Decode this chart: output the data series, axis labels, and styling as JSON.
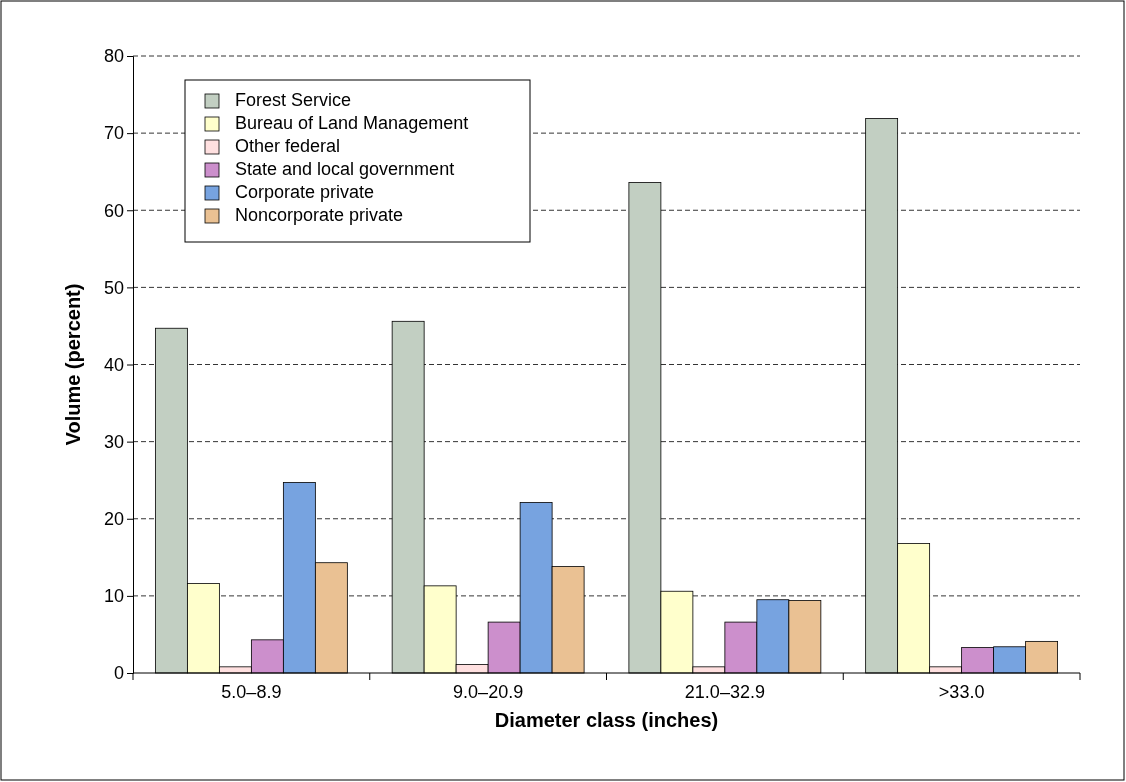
{
  "chart_data": {
    "type": "bar",
    "xlabel": "Diameter class (inches)",
    "ylabel": "Volume (percent)",
    "categories": [
      "5.0–8.9",
      "9.0–20.9",
      "21.0–32.9",
      ">33.0"
    ],
    "series": [
      {
        "name": "Forest Service",
        "color": "#c2cfc2",
        "values": [
          44.7,
          45.6,
          63.6,
          71.9
        ]
      },
      {
        "name": "Bureau of Land Management",
        "color": "#ffffcc",
        "values": [
          11.6,
          11.3,
          10.6,
          16.8
        ]
      },
      {
        "name": "Other federal",
        "color": "#ffe0e0",
        "values": [
          0.8,
          1.1,
          0.8,
          0.8
        ]
      },
      {
        "name": "State and local government",
        "color": "#cc8fcc",
        "values": [
          4.3,
          6.6,
          6.6,
          3.3
        ]
      },
      {
        "name": "Corporate private",
        "color": "#77a3e0",
        "values": [
          24.7,
          22.1,
          9.5,
          3.4
        ]
      },
      {
        "name": "Noncorporate private",
        "color": "#eac193",
        "values": [
          14.3,
          13.8,
          9.4,
          4.1
        ]
      }
    ],
    "ylim": [
      0,
      80
    ],
    "yticks": [
      0,
      10,
      20,
      30,
      40,
      50,
      60,
      70,
      80
    ],
    "grid": "y",
    "legend": "top left"
  }
}
